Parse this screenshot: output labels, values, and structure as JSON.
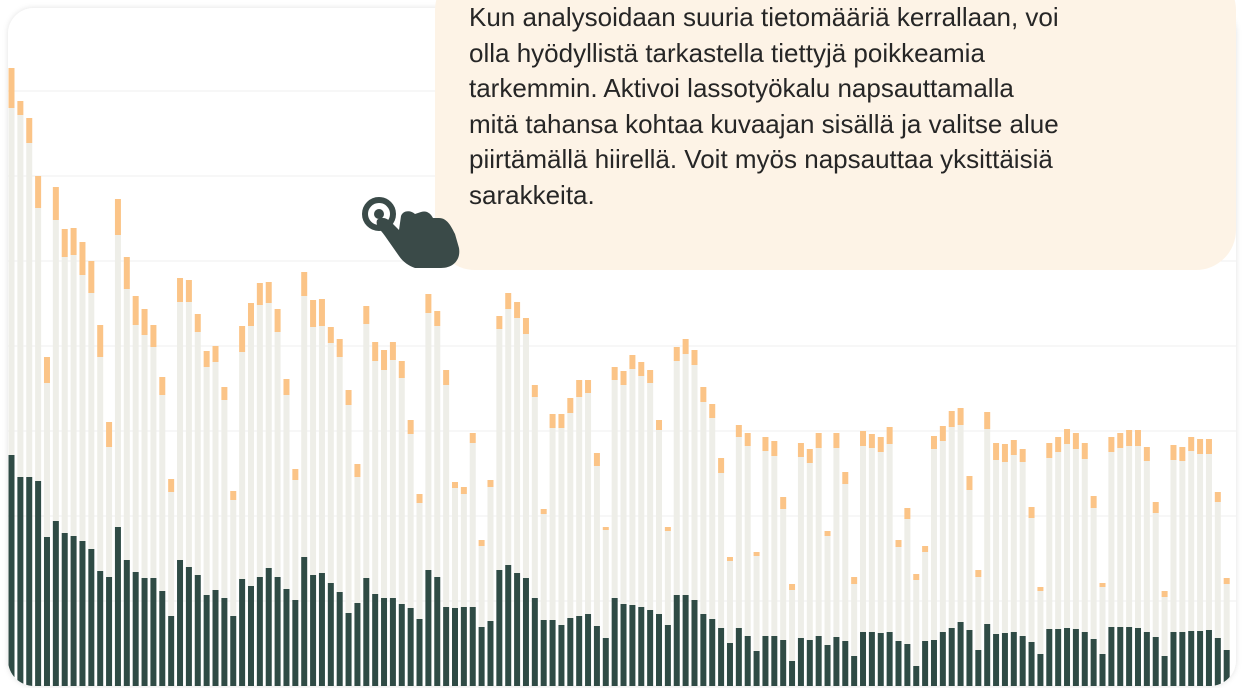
{
  "chart_data": {
    "type": "stacked_bar",
    "ylim": [
      0,
      680
    ],
    "yticks": [
      0,
      85,
      170,
      255,
      340,
      425,
      510,
      595,
      680
    ],
    "grid": true,
    "series": [
      {
        "color": "#2f4b45",
        "values": [
          231,
          209,
          209,
          205,
          149,
          165,
          153,
          150,
          145,
          137,
          115,
          109,
          159,
          126,
          114,
          108,
          108,
          95,
          70,
          126,
          119,
          111,
          91,
          96,
          88,
          70,
          107,
          100,
          109,
          118,
          109,
          97,
          86,
          129,
          111,
          113,
          103,
          94,
          73,
          83,
          108,
          92,
          88,
          88,
          82,
          78,
          67,
          116,
          109,
          79,
          78,
          79,
          79,
          59,
          65,
          116,
          121,
          113,
          108,
          88,
          66,
          66,
          61,
          68,
          70,
          72,
          60,
          48,
          88,
          82,
          81,
          79,
          76,
          72,
          61,
          91,
          91,
          86,
          72,
          67,
          58,
          43,
          58,
          50,
          35,
          50,
          50,
          46,
          25,
          48,
          46,
          50,
          41,
          49,
          45,
          30,
          54,
          54,
          53,
          54,
          45,
          42,
          20,
          45,
          46,
          54,
          58,
          64,
          56,
          36,
          62,
          52,
          53,
          54,
          50,
          44,
          32,
          57,
          57,
          58,
          57,
          54,
          47,
          32,
          59,
          59,
          59,
          58,
          54,
          49,
          30,
          54,
          54,
          55,
          55,
          56,
          48,
          36
        ]
      },
      {
        "color": "#eeeee8",
        "values": [
          347,
          362,
          334,
          273,
          154,
          301,
          276,
          281,
          266,
          256,
          214,
          130,
          292,
          271,
          247,
          243,
          231,
          196,
          124,
          258,
          265,
          243,
          228,
          228,
          198,
          116,
          227,
          260,
          272,
          265,
          245,
          194,
          120,
          261,
          248,
          247,
          240,
          235,
          208,
          126,
          254,
          233,
          228,
          238,
          226,
          174,
          116,
          257,
          251,
          222,
          120,
          113,
          164,
          81,
          134,
          241,
          256,
          255,
          244,
          201,
          106,
          192,
          197,
          205,
          219,
          221,
          160,
          108,
          218,
          219,
          236,
          231,
          227,
          184,
          94,
          234,
          241,
          235,
          212,
          201,
          155,
          82,
          191,
          190,
          95,
          185,
          180,
          131,
          71,
          181,
          177,
          188,
          109,
          189,
          157,
          72,
          186,
          184,
          181,
          188,
          94,
          125,
          86,
          89,
          191,
          191,
          201,
          197,
          140,
          73,
          195,
          174,
          171,
          177,
          174,
          124,
          63,
          171,
          177,
          184,
          180,
          173,
          131,
          67,
          175,
          179,
          181,
          182,
          171,
          124,
          59,
          172,
          171,
          180,
          177,
          176,
          136,
          66
        ]
      },
      {
        "color": "#fbc487",
        "values": [
          40,
          14,
          25,
          32,
          26,
          33,
          28,
          27,
          33,
          32,
          32,
          25,
          36,
          32,
          29,
          26,
          22,
          18,
          13,
          24,
          22,
          18,
          16,
          16,
          13,
          9,
          26,
          23,
          22,
          21,
          23,
          16,
          11,
          24,
          27,
          27,
          16,
          18,
          15,
          13,
          18,
          19,
          20,
          18,
          17,
          14,
          9,
          19,
          15,
          15,
          6,
          7,
          10,
          6,
          7,
          13,
          16,
          16,
          16,
          12,
          5,
          14,
          14,
          15,
          17,
          13,
          13,
          3,
          13,
          14,
          14,
          14,
          13,
          10,
          4,
          14,
          15,
          15,
          15,
          14,
          15,
          4,
          12,
          13,
          4,
          14,
          15,
          12,
          6,
          14,
          14,
          15,
          5,
          15,
          12,
          7,
          15,
          14,
          15,
          17,
          7,
          11,
          6,
          6,
          13,
          15,
          16,
          17,
          14,
          7,
          17,
          17,
          18,
          15,
          13,
          11,
          4,
          15,
          15,
          15,
          16,
          16,
          12,
          4,
          15,
          15,
          16,
          16,
          14,
          11,
          6,
          15,
          14,
          14,
          15,
          15,
          10,
          6
        ]
      }
    ]
  },
  "tooltip": {
    "lines": [
      "Kun analysoidaan suuria tietomääriä kerrallaan, voi",
      "olla hyödyllistä tarkastella tiettyjä poikkeamia",
      "tarkemmin. Aktivoi lassotyökalu napsauttamalla",
      "mitä tahansa kohtaa kuvaajan sisällä ja valitse alue",
      "piirtämällä hiirellä. Voit myös napsauttaa yksittäisiä",
      "sarakkeita."
    ]
  }
}
